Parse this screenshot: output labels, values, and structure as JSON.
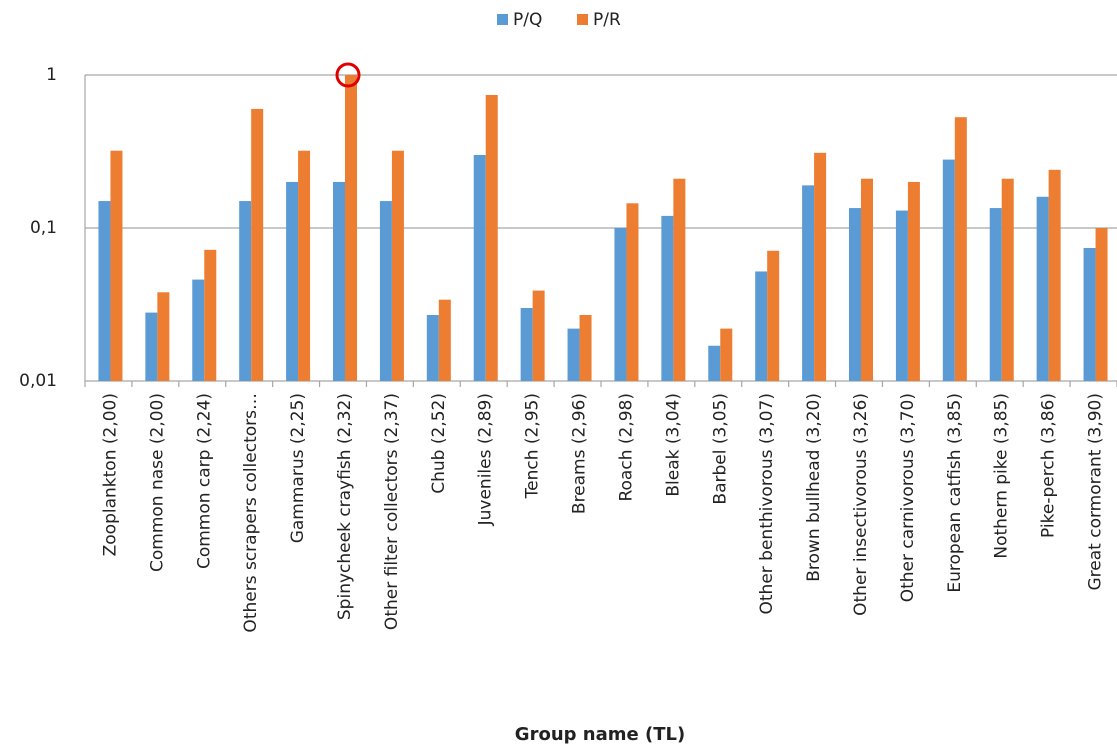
{
  "chart_data": {
    "type": "bar",
    "x_label": "Group name (TL)",
    "categories": [
      "Zooplankton (2,00)",
      "Common nase  (2,00)",
      "Common carp (2,24)",
      "Others scrapers collectors…",
      "Gammarus (2,25)",
      "Spinycheek crayfish (2,32)",
      "Other filter collectors (2,37)",
      "Chub (2,52)",
      "Juveniles (2,89)",
      "Tench (2,95)",
      "Breams (2,96)",
      "Roach (2,98)",
      "Bleak (3,04)",
      "Barbel (3,05)",
      "Other benthivorous (3,07)",
      "Brown bullhead (3,20)",
      "Other insectivorous (3,26)",
      "Other carnivorous (3,70)",
      "European catfish (3,85)",
      "Nothern pike (3,85)",
      "Pike-perch (3,86)",
      "Great cormorant (3,90)"
    ],
    "series": [
      {
        "name": "P/Q",
        "color": "#5b9bd5",
        "values": [
          0.15,
          0.028,
          0.046,
          0.15,
          0.2,
          0.2,
          0.15,
          0.027,
          0.3,
          0.03,
          0.022,
          0.1,
          0.12,
          0.017,
          0.052,
          0.19,
          0.135,
          0.13,
          0.28,
          0.135,
          0.16,
          0.074
        ]
      },
      {
        "name": "P/R",
        "color": "#ed7d31",
        "values": [
          0.32,
          0.038,
          0.072,
          0.6,
          0.32,
          1,
          0.32,
          0.034,
          0.74,
          0.039,
          0.027,
          0.145,
          0.21,
          0.022,
          0.071,
          0.31,
          0.21,
          0.2,
          0.53,
          0.21,
          0.24,
          0.1
        ]
      }
    ],
    "ylim": [
      0.01,
      1
    ],
    "yticks": [
      {
        "value": 0.01,
        "label": "0,01"
      },
      {
        "value": 0.1,
        "label": "0,1"
      },
      {
        "value": 1,
        "label": "1"
      }
    ],
    "log_scale": true,
    "grid": true,
    "legend": "top"
  }
}
